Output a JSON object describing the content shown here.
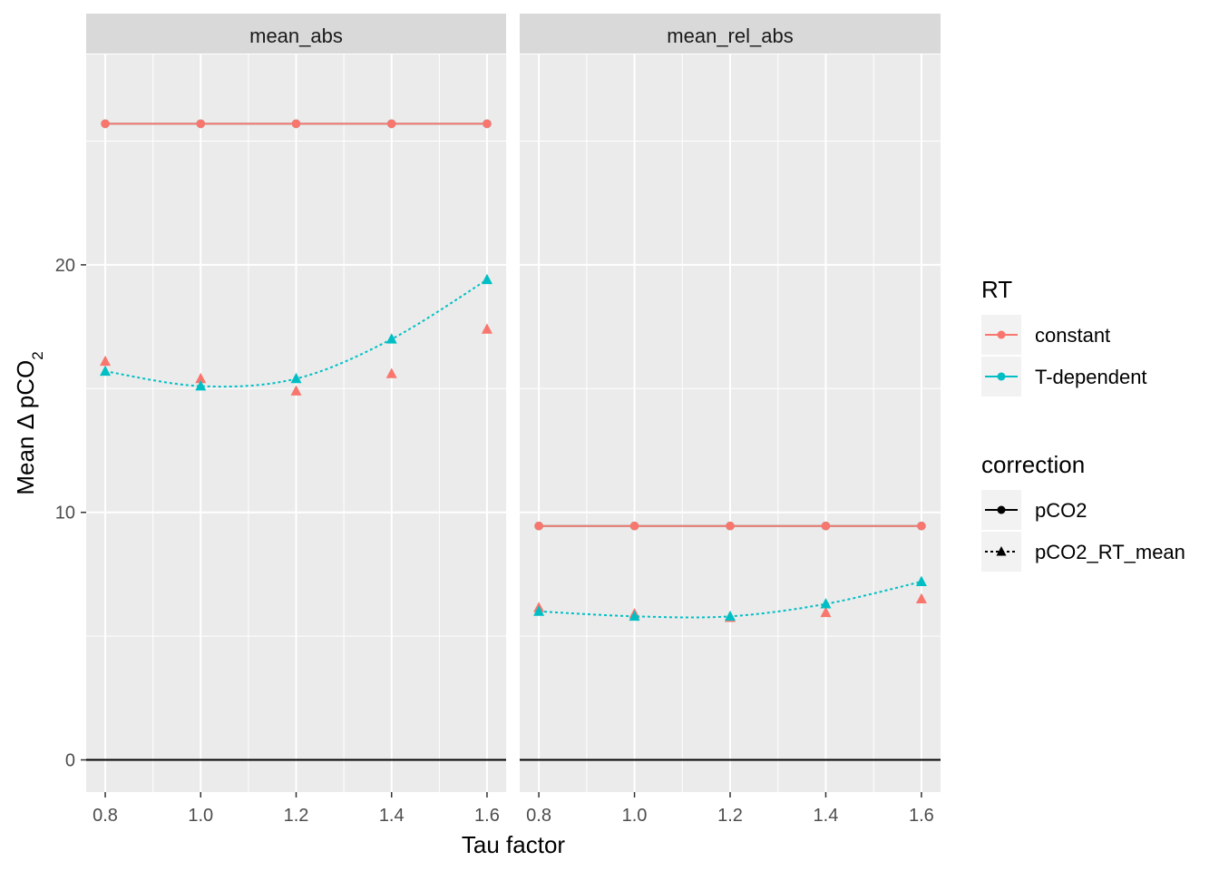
{
  "chart_data": {
    "type": "line",
    "xlabel": "Tau factor",
    "ylabel": "Mean Δ pCO",
    "ylabel_subscript": "2",
    "x": [
      0.8,
      1.0,
      1.2,
      1.4,
      1.6
    ],
    "x_tick_labels": [
      "0.8",
      "1.0",
      "1.2",
      "1.4",
      "1.6"
    ],
    "xlim": [
      0.76,
      1.64
    ],
    "y_ticks": [
      0,
      10,
      20
    ],
    "y_tick_labels": [
      "0",
      "10",
      "20"
    ],
    "ylim": [
      -1.3,
      28.5
    ],
    "grid": true,
    "reference_line_y": 0,
    "legend_position": "right",
    "colors": {
      "constant": "#F8766D",
      "T-dependent": "#00BFC4",
      "reference": "#000000",
      "panel_bg": "#EBEBEB",
      "strip_bg": "#D9D9D9",
      "grid": "#FFFFFF"
    },
    "panels": [
      {
        "name": "mean_abs",
        "series": [
          {
            "rt": "T-dependent",
            "correction": "pCO2",
            "values": [
              25.7,
              25.7,
              25.7,
              25.7,
              25.7
            ]
          },
          {
            "rt": "constant",
            "correction": "pCO2",
            "values": [
              25.7,
              25.7,
              25.7,
              25.7,
              25.7
            ]
          },
          {
            "rt": "constant",
            "correction": "pCO2_RT_mean",
            "values": [
              16.1,
              15.4,
              14.9,
              15.6,
              17.4
            ]
          },
          {
            "rt": "T-dependent",
            "correction": "pCO2_RT_mean",
            "values": [
              15.7,
              15.1,
              15.4,
              17.0,
              19.4
            ]
          }
        ]
      },
      {
        "name": "mean_rel_abs",
        "series": [
          {
            "rt": "T-dependent",
            "correction": "pCO2",
            "values": [
              9.45,
              9.45,
              9.45,
              9.45,
              9.45
            ]
          },
          {
            "rt": "constant",
            "correction": "pCO2",
            "values": [
              9.45,
              9.45,
              9.45,
              9.45,
              9.45
            ]
          },
          {
            "rt": "constant",
            "correction": "pCO2_RT_mean",
            "values": [
              6.15,
              5.9,
              5.75,
              5.95,
              6.5
            ]
          },
          {
            "rt": "T-dependent",
            "correction": "pCO2_RT_mean",
            "values": [
              6.0,
              5.8,
              5.8,
              6.3,
              7.2
            ]
          }
        ]
      }
    ],
    "legends": [
      {
        "title": "RT",
        "entries": [
          "constant",
          "T-dependent"
        ]
      },
      {
        "title": "correction",
        "entries": [
          "pCO2",
          "pCO2_RT_mean"
        ]
      }
    ]
  }
}
